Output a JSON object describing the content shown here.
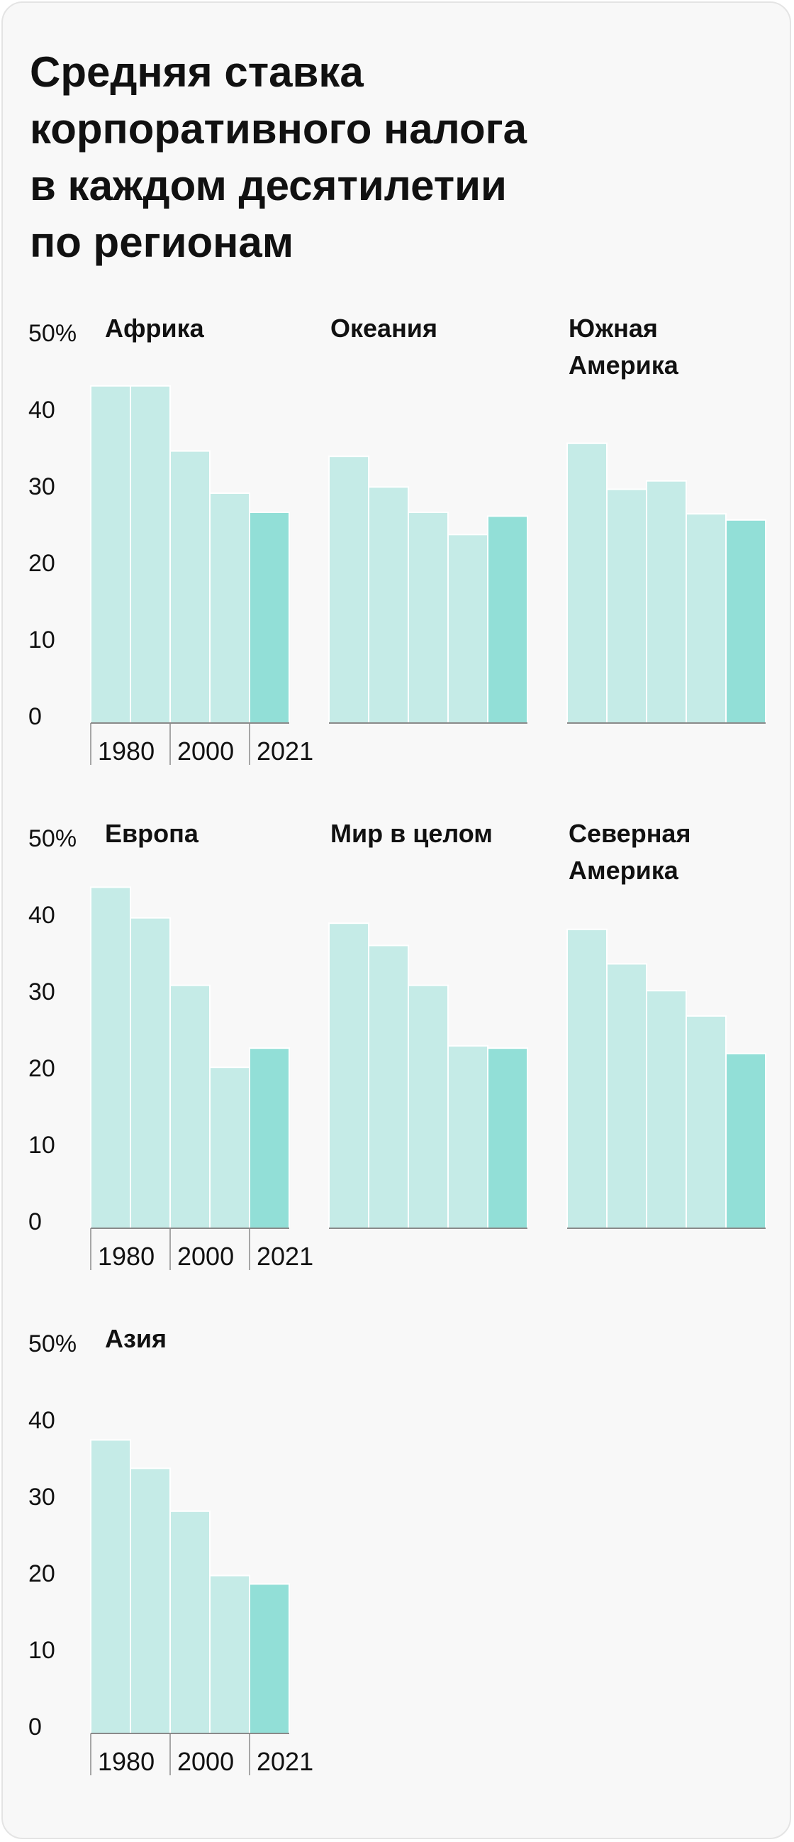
{
  "title": "Средняя ставка\nкорпоративного налога\nв каждом десятилетии\nпо регионам",
  "colors": {
    "bar": "#c5ebe7",
    "bar_latest": "#92dfd7",
    "bar_separator": "#ffffff",
    "baseline": "#8a8a8a",
    "text": "#111111",
    "background": "#f8f8f8"
  },
  "chart_data": [
    {
      "type": "bar",
      "title": "Африка",
      "categories": [
        "1980",
        "1990",
        "2000",
        "2010",
        "2021"
      ],
      "values": [
        44,
        44,
        35.5,
        30,
        27.5
      ],
      "ylim": [
        0,
        50
      ],
      "yticks": [
        "50%",
        "40",
        "30",
        "20",
        "10",
        "0"
      ],
      "xticks": [
        "1980",
        "2000",
        "2021"
      ]
    },
    {
      "type": "bar",
      "title": "Океания",
      "categories": [
        "1980",
        "1990",
        "2000",
        "2010",
        "2021"
      ],
      "values": [
        34.8,
        30.8,
        27.5,
        24.6,
        27
      ],
      "ylim": [
        0,
        50
      ]
    },
    {
      "type": "bar",
      "title": "Южная\nАмерика",
      "categories": [
        "1980",
        "1990",
        "2000",
        "2010",
        "2021"
      ],
      "values": [
        36.5,
        30.5,
        31.6,
        27.3,
        26.5
      ],
      "ylim": [
        0,
        50
      ]
    },
    {
      "type": "bar",
      "title": "Европа",
      "categories": [
        "1980",
        "1990",
        "2000",
        "2010",
        "2021"
      ],
      "values": [
        44.5,
        40.5,
        31.7,
        21,
        23.5
      ],
      "ylim": [
        0,
        50
      ],
      "yticks": [
        "50%",
        "40",
        "30",
        "20",
        "10",
        "0"
      ],
      "xticks": [
        "1980",
        "2000",
        "2021"
      ]
    },
    {
      "type": "bar",
      "title": "Мир в целом",
      "categories": [
        "1980",
        "1990",
        "2000",
        "2010",
        "2021"
      ],
      "values": [
        39.8,
        36.9,
        31.7,
        23.8,
        23.5
      ],
      "ylim": [
        0,
        50
      ]
    },
    {
      "type": "bar",
      "title": "Северная\nАмерика",
      "categories": [
        "1980",
        "1990",
        "2000",
        "2010",
        "2021"
      ],
      "values": [
        39,
        34.5,
        31,
        27.7,
        22.8
      ],
      "ylim": [
        0,
        50
      ]
    },
    {
      "type": "bar",
      "title": "Азия",
      "categories": [
        "1980",
        "1990",
        "2000",
        "2010",
        "2021"
      ],
      "values": [
        38.3,
        34.6,
        29,
        20.6,
        19.5
      ],
      "ylim": [
        0,
        50
      ],
      "yticks": [
        "50%",
        "40",
        "30",
        "20",
        "10",
        "0"
      ],
      "xticks": [
        "1980",
        "2000",
        "2021"
      ]
    }
  ]
}
